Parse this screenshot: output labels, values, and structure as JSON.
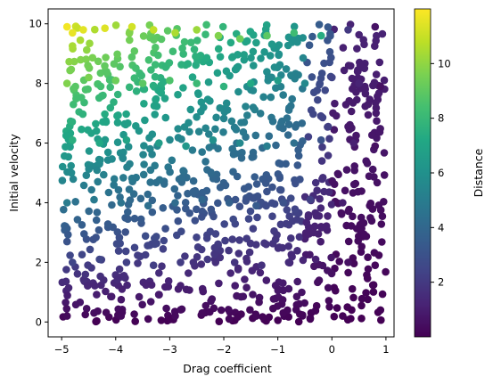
{
  "chart_data": {
    "type": "scatter",
    "title": "",
    "xlabel": "Drag coefficient",
    "ylabel": "Initial velocity",
    "colorbar_label": "Distance",
    "colormap": "viridis",
    "marker_size_note": "filled circles",
    "xlim": [
      -5.25,
      1.15
    ],
    "ylim": [
      -0.5,
      10.5
    ],
    "clim": [
      0.0,
      12.0
    ],
    "x_ticks": [
      -5,
      -4,
      -3,
      -2,
      -1,
      0,
      1
    ],
    "y_ticks": [
      0,
      2,
      4,
      6,
      8,
      10
    ],
    "colorbar_ticks": [
      2,
      4,
      6,
      8,
      10
    ],
    "grid": false,
    "legend": "none",
    "num_points": 1000,
    "distance_model": "distance ≈ velocity × (1 + |drag coefficient| / 5) rescaled to 0–12 color range",
    "points": [
      {
        "x": -4.9,
        "y": 9.9,
        "c": 11.8
      },
      {
        "x": -4.8,
        "y": 9.7,
        "c": 11.6
      },
      {
        "x": -4.6,
        "y": 9.8,
        "c": 11.5
      },
      {
        "x": -4.2,
        "y": 9.85,
        "c": 11.4
      },
      {
        "x": -3.7,
        "y": 9.9,
        "c": 11.2
      },
      {
        "x": -3.3,
        "y": 9.8,
        "c": 10.9
      },
      {
        "x": -2.9,
        "y": 9.7,
        "c": 10.5
      },
      {
        "x": -2.5,
        "y": 9.8,
        "c": 10.2
      },
      {
        "x": -2.1,
        "y": 9.6,
        "c": 9.7
      },
      {
        "x": -1.7,
        "y": 9.5,
        "c": 9.3
      },
      {
        "x": -1.2,
        "y": 9.6,
        "c": 8.9
      },
      {
        "x": -0.7,
        "y": 9.7,
        "c": 8.2
      },
      {
        "x": -0.2,
        "y": 9.6,
        "c": 7.4
      },
      {
        "x": 0.3,
        "y": 9.8,
        "c": 2.0
      },
      {
        "x": 0.8,
        "y": 9.9,
        "c": 0.6
      },
      {
        "x": -4.9,
        "y": 8.0,
        "c": 9.7
      },
      {
        "x": -4.5,
        "y": 8.2,
        "c": 9.6
      },
      {
        "x": -4.0,
        "y": 8.1,
        "c": 9.3
      },
      {
        "x": -3.5,
        "y": 8.0,
        "c": 8.9
      },
      {
        "x": -3.0,
        "y": 8.1,
        "c": 8.6
      },
      {
        "x": -2.5,
        "y": 8.0,
        "c": 8.1
      },
      {
        "x": -2.0,
        "y": 7.9,
        "c": 7.7
      },
      {
        "x": -1.5,
        "y": 8.0,
        "c": 7.2
      },
      {
        "x": -1.0,
        "y": 8.1,
        "c": 6.6
      },
      {
        "x": -0.5,
        "y": 8.0,
        "c": 5.6
      },
      {
        "x": 0.0,
        "y": 8.2,
        "c": 2.4
      },
      {
        "x": 0.5,
        "y": 8.0,
        "c": 1.2
      },
      {
        "x": 0.9,
        "y": 7.9,
        "c": 0.5
      },
      {
        "x": -4.8,
        "y": 6.1,
        "c": 7.5
      },
      {
        "x": -4.3,
        "y": 6.0,
        "c": 7.2
      },
      {
        "x": -3.8,
        "y": 6.1,
        "c": 7.0
      },
      {
        "x": -3.2,
        "y": 6.0,
        "c": 6.6
      },
      {
        "x": -2.7,
        "y": 5.9,
        "c": 6.3
      },
      {
        "x": -2.2,
        "y": 6.1,
        "c": 6.0
      },
      {
        "x": -1.7,
        "y": 6.0,
        "c": 5.6
      },
      {
        "x": -1.2,
        "y": 5.9,
        "c": 5.1
      },
      {
        "x": -0.7,
        "y": 6.0,
        "c": 4.4
      },
      {
        "x": -0.2,
        "y": 6.1,
        "c": 3.0
      },
      {
        "x": 0.4,
        "y": 6.0,
        "c": 1.1
      },
      {
        "x": 0.8,
        "y": 5.9,
        "c": 0.5
      },
      {
        "x": -4.9,
        "y": 4.0,
        "c": 5.0
      },
      {
        "x": -4.4,
        "y": 4.1,
        "c": 4.9
      },
      {
        "x": -3.9,
        "y": 4.0,
        "c": 4.6
      },
      {
        "x": -3.4,
        "y": 3.9,
        "c": 4.4
      },
      {
        "x": -2.9,
        "y": 4.0,
        "c": 4.2
      },
      {
        "x": -2.4,
        "y": 4.1,
        "c": 4.0
      },
      {
        "x": -1.9,
        "y": 4.0,
        "c": 3.7
      },
      {
        "x": -1.4,
        "y": 3.9,
        "c": 3.4
      },
      {
        "x": -0.9,
        "y": 4.0,
        "c": 3.0
      },
      {
        "x": -0.4,
        "y": 4.1,
        "c": 2.3
      },
      {
        "x": 0.2,
        "y": 4.0,
        "c": 1.0
      },
      {
        "x": 0.7,
        "y": 3.9,
        "c": 0.4
      },
      {
        "x": -4.8,
        "y": 2.0,
        "c": 2.5
      },
      {
        "x": -4.3,
        "y": 2.1,
        "c": 2.5
      },
      {
        "x": -3.8,
        "y": 2.0,
        "c": 2.3
      },
      {
        "x": -3.3,
        "y": 1.9,
        "c": 2.2
      },
      {
        "x": -2.8,
        "y": 2.0,
        "c": 2.1
      },
      {
        "x": -2.3,
        "y": 2.1,
        "c": 2.0
      },
      {
        "x": -1.8,
        "y": 2.0,
        "c": 1.8
      },
      {
        "x": -1.3,
        "y": 1.9,
        "c": 1.7
      },
      {
        "x": -0.8,
        "y": 2.0,
        "c": 1.5
      },
      {
        "x": -0.3,
        "y": 2.1,
        "c": 1.1
      },
      {
        "x": 0.3,
        "y": 2.0,
        "c": 0.5
      },
      {
        "x": 0.8,
        "y": 1.9,
        "c": 0.2
      },
      {
        "x": -4.9,
        "y": 0.2,
        "c": 0.3
      },
      {
        "x": -4.4,
        "y": 0.3,
        "c": 0.4
      },
      {
        "x": -3.9,
        "y": 0.2,
        "c": 0.3
      },
      {
        "x": -3.4,
        "y": 0.1,
        "c": 0.2
      },
      {
        "x": -2.9,
        "y": 0.2,
        "c": 0.3
      },
      {
        "x": -2.4,
        "y": 0.3,
        "c": 0.3
      },
      {
        "x": -1.9,
        "y": 0.1,
        "c": 0.2
      },
      {
        "x": -1.4,
        "y": 0.2,
        "c": 0.2
      },
      {
        "x": -0.9,
        "y": 0.3,
        "c": 0.2
      },
      {
        "x": -0.4,
        "y": 0.1,
        "c": 0.1
      },
      {
        "x": 0.2,
        "y": 0.2,
        "c": 0.1
      },
      {
        "x": 0.9,
        "y": 0.4,
        "c": 0.1
      }
    ]
  }
}
